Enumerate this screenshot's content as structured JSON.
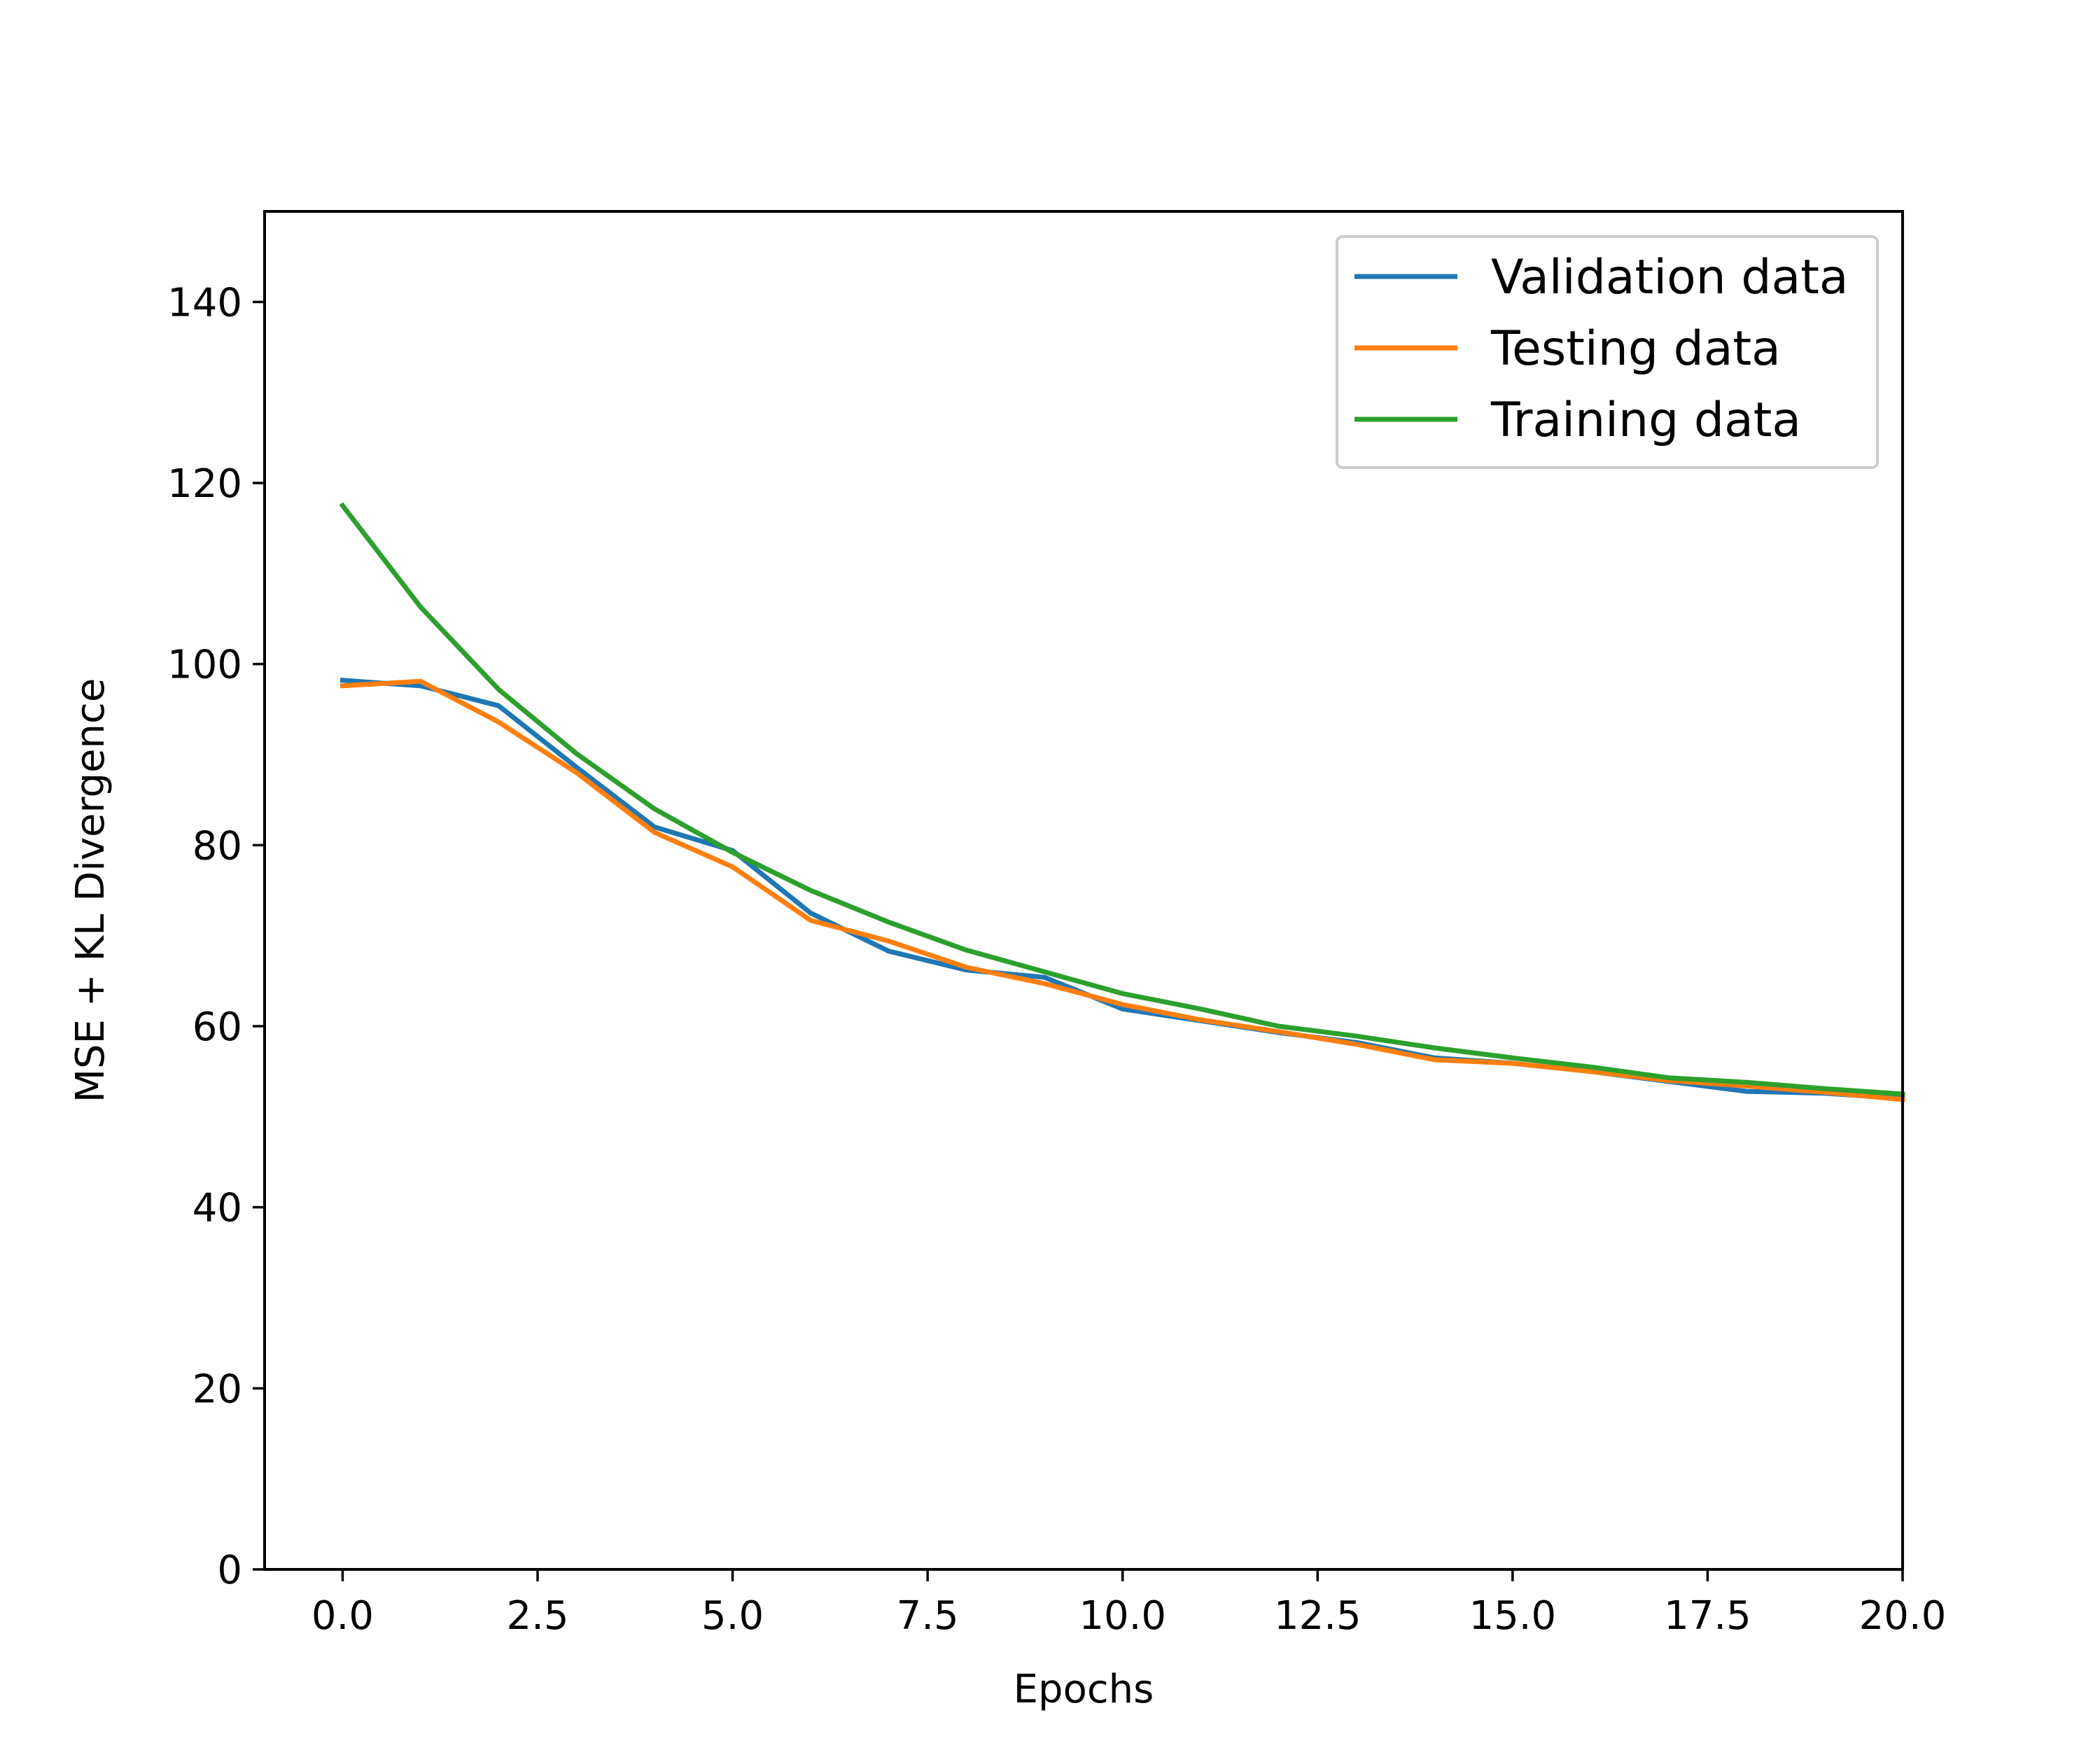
{
  "chart_data": {
    "type": "line",
    "title": "",
    "xlabel": "Epochs",
    "ylabel": "MSE + KL Divergence",
    "xlim": [
      -1,
      20
    ],
    "ylim": [
      0,
      150
    ],
    "xticks": [
      0.0,
      2.5,
      5.0,
      7.5,
      10.0,
      12.5,
      15.0,
      17.5,
      20.0
    ],
    "xtick_labels": [
      "0.0",
      "2.5",
      "5.0",
      "7.5",
      "10.0",
      "12.5",
      "15.0",
      "17.5",
      "20.0"
    ],
    "yticks": [
      0,
      20,
      40,
      60,
      80,
      100,
      120,
      140
    ],
    "ytick_labels": [
      "0",
      "20",
      "40",
      "60",
      "80",
      "100",
      "120",
      "140"
    ],
    "grid": false,
    "legend_position": "top-right",
    "x": [
      0,
      1,
      2,
      3,
      4,
      5,
      6,
      7,
      8,
      9,
      10,
      11,
      12,
      13,
      14,
      15,
      16,
      17,
      18,
      19,
      20
    ],
    "series": [
      {
        "name": "Validation data",
        "color": "#1f77b4",
        "values": [
          98.2,
          97.6,
          95.4,
          88.6,
          82.0,
          79.4,
          72.5,
          68.3,
          66.2,
          65.4,
          61.9,
          60.6,
          59.3,
          58.2,
          56.5,
          55.9,
          55.0,
          53.9,
          52.8,
          52.6,
          52.0
        ]
      },
      {
        "name": "Testing data",
        "color": "#ff7f0e",
        "values": [
          97.6,
          98.1,
          93.6,
          88.0,
          81.4,
          77.6,
          71.7,
          69.4,
          66.5,
          64.7,
          62.4,
          60.7,
          59.4,
          58.0,
          56.3,
          55.9,
          55.0,
          54.0,
          53.4,
          52.7,
          51.9
        ]
      },
      {
        "name": "Training data",
        "color": "#2ca02c",
        "values": [
          117.5,
          106.3,
          97.2,
          90.1,
          84.0,
          79.2,
          75.0,
          71.5,
          68.4,
          66.0,
          63.6,
          61.9,
          60.0,
          58.9,
          57.6,
          56.5,
          55.5,
          54.3,
          53.8,
          53.1,
          52.5
        ]
      }
    ]
  }
}
